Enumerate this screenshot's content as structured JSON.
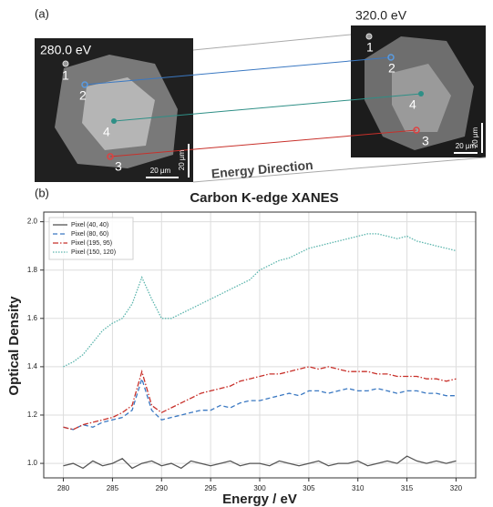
{
  "panel_labels": [
    "(a)",
    "(b)"
  ],
  "panel_a": {
    "images": [
      {
        "energy": "280.0 eV",
        "points": [
          "1",
          "2",
          "3",
          "4"
        ],
        "scale_bars": [
          "20 µm",
          "20 µm"
        ]
      },
      {
        "energy": "320.0 eV",
        "points": [
          "1",
          "2",
          "3",
          "4"
        ],
        "scale_bars": [
          "20 µm",
          "20 µm"
        ]
      }
    ],
    "arrow_label": "Energy Direction"
  },
  "chart_data": {
    "type": "line",
    "title": "Carbon K-edge XANES",
    "x_label": "Energy / eV",
    "y_label": "Optical Density",
    "x": [
      280,
      281,
      282,
      283,
      284,
      285,
      286,
      287,
      288,
      289,
      290,
      291,
      292,
      293,
      294,
      295,
      296,
      297,
      298,
      299,
      300,
      301,
      302,
      303,
      304,
      305,
      306,
      307,
      308,
      309,
      310,
      311,
      312,
      313,
      314,
      315,
      316,
      317,
      318,
      319,
      320
    ],
    "series": [
      {
        "name": "Pixel (40, 40)",
        "color": "#555555",
        "linestyle": "solid",
        "values": [
          0.99,
          1.0,
          0.98,
          1.01,
          0.99,
          1.0,
          1.02,
          0.98,
          1.0,
          1.01,
          0.99,
          1.0,
          0.98,
          1.01,
          1.0,
          0.99,
          1.0,
          1.01,
          0.99,
          1.0,
          1.0,
          0.99,
          1.01,
          1.0,
          0.99,
          1.0,
          1.01,
          0.99,
          1.0,
          1.0,
          1.01,
          0.99,
          1.0,
          1.01,
          1.0,
          1.03,
          1.01,
          1.0,
          1.01,
          1.0,
          1.01
        ]
      },
      {
        "name": "Pixel (80, 60)",
        "color": "#3a78c2",
        "linestyle": "dashed",
        "values": [
          1.15,
          1.14,
          1.16,
          1.15,
          1.17,
          1.18,
          1.19,
          1.22,
          1.35,
          1.22,
          1.18,
          1.19,
          1.2,
          1.21,
          1.22,
          1.22,
          1.24,
          1.23,
          1.25,
          1.26,
          1.26,
          1.27,
          1.28,
          1.29,
          1.28,
          1.3,
          1.3,
          1.29,
          1.3,
          1.31,
          1.3,
          1.3,
          1.31,
          1.3,
          1.29,
          1.3,
          1.3,
          1.29,
          1.29,
          1.28,
          1.28
        ]
      },
      {
        "name": "Pixel (195, 95)",
        "color": "#c8302a",
        "linestyle": "dashdot",
        "values": [
          1.15,
          1.14,
          1.16,
          1.17,
          1.18,
          1.19,
          1.21,
          1.24,
          1.38,
          1.24,
          1.21,
          1.23,
          1.25,
          1.27,
          1.29,
          1.3,
          1.31,
          1.32,
          1.34,
          1.35,
          1.36,
          1.37,
          1.37,
          1.38,
          1.39,
          1.4,
          1.39,
          1.4,
          1.39,
          1.38,
          1.38,
          1.38,
          1.37,
          1.37,
          1.36,
          1.36,
          1.36,
          1.35,
          1.35,
          1.34,
          1.35
        ]
      },
      {
        "name": "Pixel (150, 120)",
        "color": "#5bb5ad",
        "linestyle": "dotted",
        "values": [
          1.4,
          1.42,
          1.45,
          1.5,
          1.55,
          1.58,
          1.6,
          1.66,
          1.77,
          1.68,
          1.6,
          1.6,
          1.62,
          1.64,
          1.66,
          1.68,
          1.7,
          1.72,
          1.74,
          1.76,
          1.8,
          1.82,
          1.84,
          1.85,
          1.87,
          1.89,
          1.9,
          1.91,
          1.92,
          1.93,
          1.94,
          1.95,
          1.95,
          1.94,
          1.93,
          1.94,
          1.92,
          1.91,
          1.9,
          1.89,
          1.88
        ]
      }
    ],
    "xlim": [
      278,
      322
    ],
    "ylim": [
      0.94,
      2.04
    ],
    "xticks": [
      280,
      285,
      290,
      295,
      300,
      305,
      310,
      315,
      320
    ],
    "yticks": [
      {
        "value": 1,
        "label": "1.0"
      },
      1.2,
      1.4,
      1.6,
      1.8,
      {
        "value": 2,
        "label": "2.0"
      }
    ],
    "grid": true,
    "legend": "upper left"
  }
}
